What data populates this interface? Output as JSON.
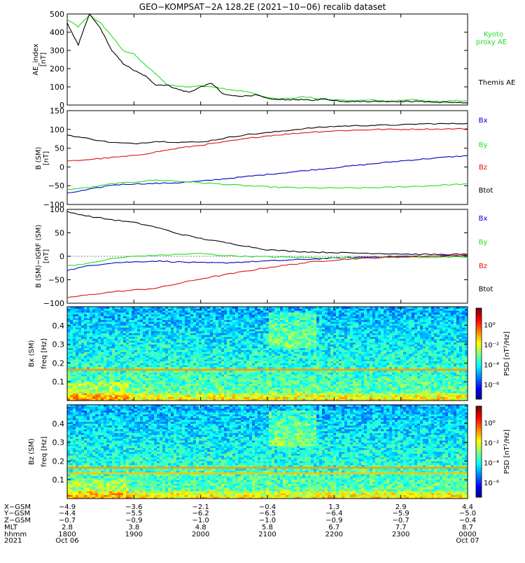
{
  "title": "GEO−KOMPSAT−2A 128.2E (2021−10−06) recalib dataset",
  "colors": {
    "black": "#000000",
    "red": "#dd1111",
    "green": "#22dd22",
    "blue": "#0000cc"
  },
  "chart_data": [
    {
      "type": "line",
      "panel": "ae_index",
      "ylabel": "AE_index",
      "yunit": "[nT]",
      "ylim": [
        0,
        500
      ],
      "yticks": [
        "0",
        "100",
        "200",
        "300",
        "400",
        "500"
      ],
      "x": [
        "18:00",
        "18:10",
        "18:20",
        "18:30",
        "18:40",
        "18:50",
        "19:00",
        "19:10",
        "19:20",
        "19:30",
        "19:40",
        "19:50",
        "20:00",
        "20:10",
        "20:20",
        "20:30",
        "20:40",
        "20:50",
        "21:00",
        "21:10",
        "21:20",
        "21:30",
        "21:40",
        "21:50",
        "22:00",
        "22:10",
        "22:20",
        "22:30",
        "22:40",
        "22:50",
        "23:00",
        "23:10",
        "23:20",
        "23:30",
        "23:40",
        "23:50",
        "24:00"
      ],
      "series": [
        {
          "name": "Kyoto proxy AE",
          "color_key": "green",
          "values": [
            470,
            430,
            495,
            450,
            380,
            300,
            280,
            220,
            170,
            110,
            105,
            100,
            105,
            100,
            90,
            80,
            75,
            60,
            40,
            35,
            35,
            45,
            40,
            30,
            30,
            25,
            25,
            30,
            25,
            20,
            25,
            30,
            25,
            20,
            20,
            25,
            20
          ]
        },
        {
          "name": "Themis AE",
          "color_key": "black",
          "values": [
            450,
            330,
            500,
            420,
            300,
            230,
            190,
            160,
            110,
            110,
            85,
            70,
            100,
            120,
            60,
            50,
            50,
            55,
            35,
            30,
            30,
            30,
            25,
            35,
            25,
            20,
            20,
            20,
            20,
            20,
            20,
            20,
            20,
            15,
            15,
            15,
            10
          ]
        }
      ]
    },
    {
      "type": "line",
      "panel": "b_sm",
      "ylabel": "B (SM)",
      "yunit": "[nT]",
      "ylim": [
        -100,
        150
      ],
      "yticks": [
        "−100",
        "−50",
        "0",
        "50",
        "100",
        "150"
      ],
      "x": [
        "18:00",
        "18:20",
        "18:40",
        "19:00",
        "19:20",
        "19:40",
        "20:00",
        "20:20",
        "20:40",
        "21:00",
        "21:20",
        "21:40",
        "22:00",
        "22:20",
        "22:40",
        "23:00",
        "23:20",
        "23:40",
        "24:00"
      ],
      "series": [
        {
          "name": "Bx",
          "color_key": "blue",
          "values": [
            -70,
            -60,
            -48,
            -45,
            -44,
            -42,
            -38,
            -32,
            -26,
            -20,
            -14,
            -8,
            -2,
            4,
            10,
            16,
            21,
            26,
            30
          ]
        },
        {
          "name": "By",
          "color_key": "green",
          "values": [
            -60,
            -55,
            -45,
            -40,
            -35,
            -38,
            -42,
            -46,
            -50,
            -53,
            -55,
            -56,
            -56,
            -56,
            -55,
            -53,
            -51,
            -48,
            -45
          ]
        },
        {
          "name": "Bz",
          "color_key": "red",
          "values": [
            15,
            20,
            25,
            30,
            40,
            50,
            58,
            66,
            75,
            83,
            88,
            93,
            96,
            98,
            100,
            100,
            101,
            101,
            102
          ]
        },
        {
          "name": "Btot",
          "color_key": "black",
          "values": [
            85,
            75,
            65,
            62,
            68,
            66,
            66,
            76,
            86,
            91,
            98,
            104,
            108,
            110,
            111,
            112,
            115,
            115,
            116
          ]
        }
      ],
      "legend": [
        "Bx",
        "By",
        "Bz",
        "Btot"
      ]
    },
    {
      "type": "line",
      "panel": "b_sm_minus_igrf",
      "ylabel": "B (SM)−IGRF (SM)",
      "yunit": "[nT]",
      "ylim": [
        -100,
        100
      ],
      "yticks": [
        "−100",
        "−50",
        "0",
        "50",
        "100"
      ],
      "x": [
        "18:00",
        "18:20",
        "18:40",
        "19:00",
        "19:20",
        "19:40",
        "20:00",
        "20:20",
        "20:40",
        "21:00",
        "21:20",
        "21:40",
        "22:00",
        "22:20",
        "22:40",
        "23:00",
        "23:20",
        "23:40",
        "24:00"
      ],
      "series": [
        {
          "name": "Bx",
          "color_key": "blue",
          "values": [
            -30,
            -20,
            -14,
            -12,
            -10,
            -12,
            -14,
            -14,
            -12,
            -10,
            -8,
            -6,
            -4,
            -2,
            -1,
            0,
            0,
            1,
            2
          ]
        },
        {
          "name": "By",
          "color_key": "green",
          "values": [
            -20,
            -15,
            -5,
            0,
            2,
            4,
            6,
            2,
            0,
            -1,
            -2,
            -3,
            -3,
            -3,
            -3,
            -2,
            -2,
            -2,
            -2
          ]
        },
        {
          "name": "Bz",
          "color_key": "red",
          "values": [
            -88,
            -82,
            -76,
            -72,
            -68,
            -58,
            -48,
            -40,
            -32,
            -24,
            -18,
            -12,
            -8,
            -5,
            -3,
            -1,
            0,
            1,
            2
          ]
        },
        {
          "name": "Btot",
          "color_key": "black",
          "values": [
            95,
            85,
            78,
            72,
            62,
            48,
            38,
            30,
            22,
            14,
            11,
            9,
            8,
            7,
            6,
            5,
            4,
            4,
            4
          ]
        }
      ],
      "legend": [
        "Bx",
        "By",
        "Bz",
        "Btot"
      ]
    },
    {
      "type": "heatmap",
      "panel": "bx_spectrum",
      "ylabel": "Bx (SM)",
      "yunit": "freq [Hz]",
      "ylim": [
        0,
        0.5
      ],
      "yticks": [
        "0.1",
        "0.2",
        "0.3",
        "0.4"
      ],
      "colorbar_label": "PSD [nT²/Hz]",
      "colorbar_ticks": [
        "10⁰",
        "10⁻²",
        "10⁻⁴",
        "10⁻⁶"
      ]
    },
    {
      "type": "heatmap",
      "panel": "bz_spectrum",
      "ylabel": "Bz (SM)",
      "yunit": "freq [Hz]",
      "ylim": [
        0,
        0.5
      ],
      "yticks": [
        "0.1",
        "0.2",
        "0.3",
        "0.4"
      ],
      "colorbar_label": "PSD [nT²/Hz]",
      "colorbar_ticks": [
        "10⁰",
        "10⁻²",
        "10⁻⁴",
        "10⁻⁶"
      ]
    }
  ],
  "ae_legend": {
    "kyoto_line1": "Kyoto",
    "kyoto_line2": "proxy AE",
    "themis": "Themis AE"
  },
  "ephemeris": {
    "row_labels": [
      "X−GSM",
      "Y−GSM",
      "Z−GSM",
      "MLT",
      "hhmm",
      "2021"
    ],
    "columns": [
      [
        "−4.9",
        "−4.4",
        "−0.7",
        "2.8",
        "1800",
        "Oct 06"
      ],
      [
        "−3.6",
        "−5.5",
        "−0.9",
        "3.8",
        "1900",
        ""
      ],
      [
        "−2.1",
        "−6.2",
        "−1.0",
        "4.8",
        "2000",
        ""
      ],
      [
        "−0.4",
        "−6.5",
        "−1.0",
        "5.8",
        "2100",
        ""
      ],
      [
        "1.3",
        "−6.4",
        "−0.9",
        "6.7",
        "2200",
        ""
      ],
      [
        "2.9",
        "−5.9",
        "−0.7",
        "7.7",
        "2300",
        ""
      ],
      [
        "4.4",
        "−5.0",
        "−0.4",
        "8.7",
        "0000",
        "Oct 07"
      ]
    ]
  }
}
